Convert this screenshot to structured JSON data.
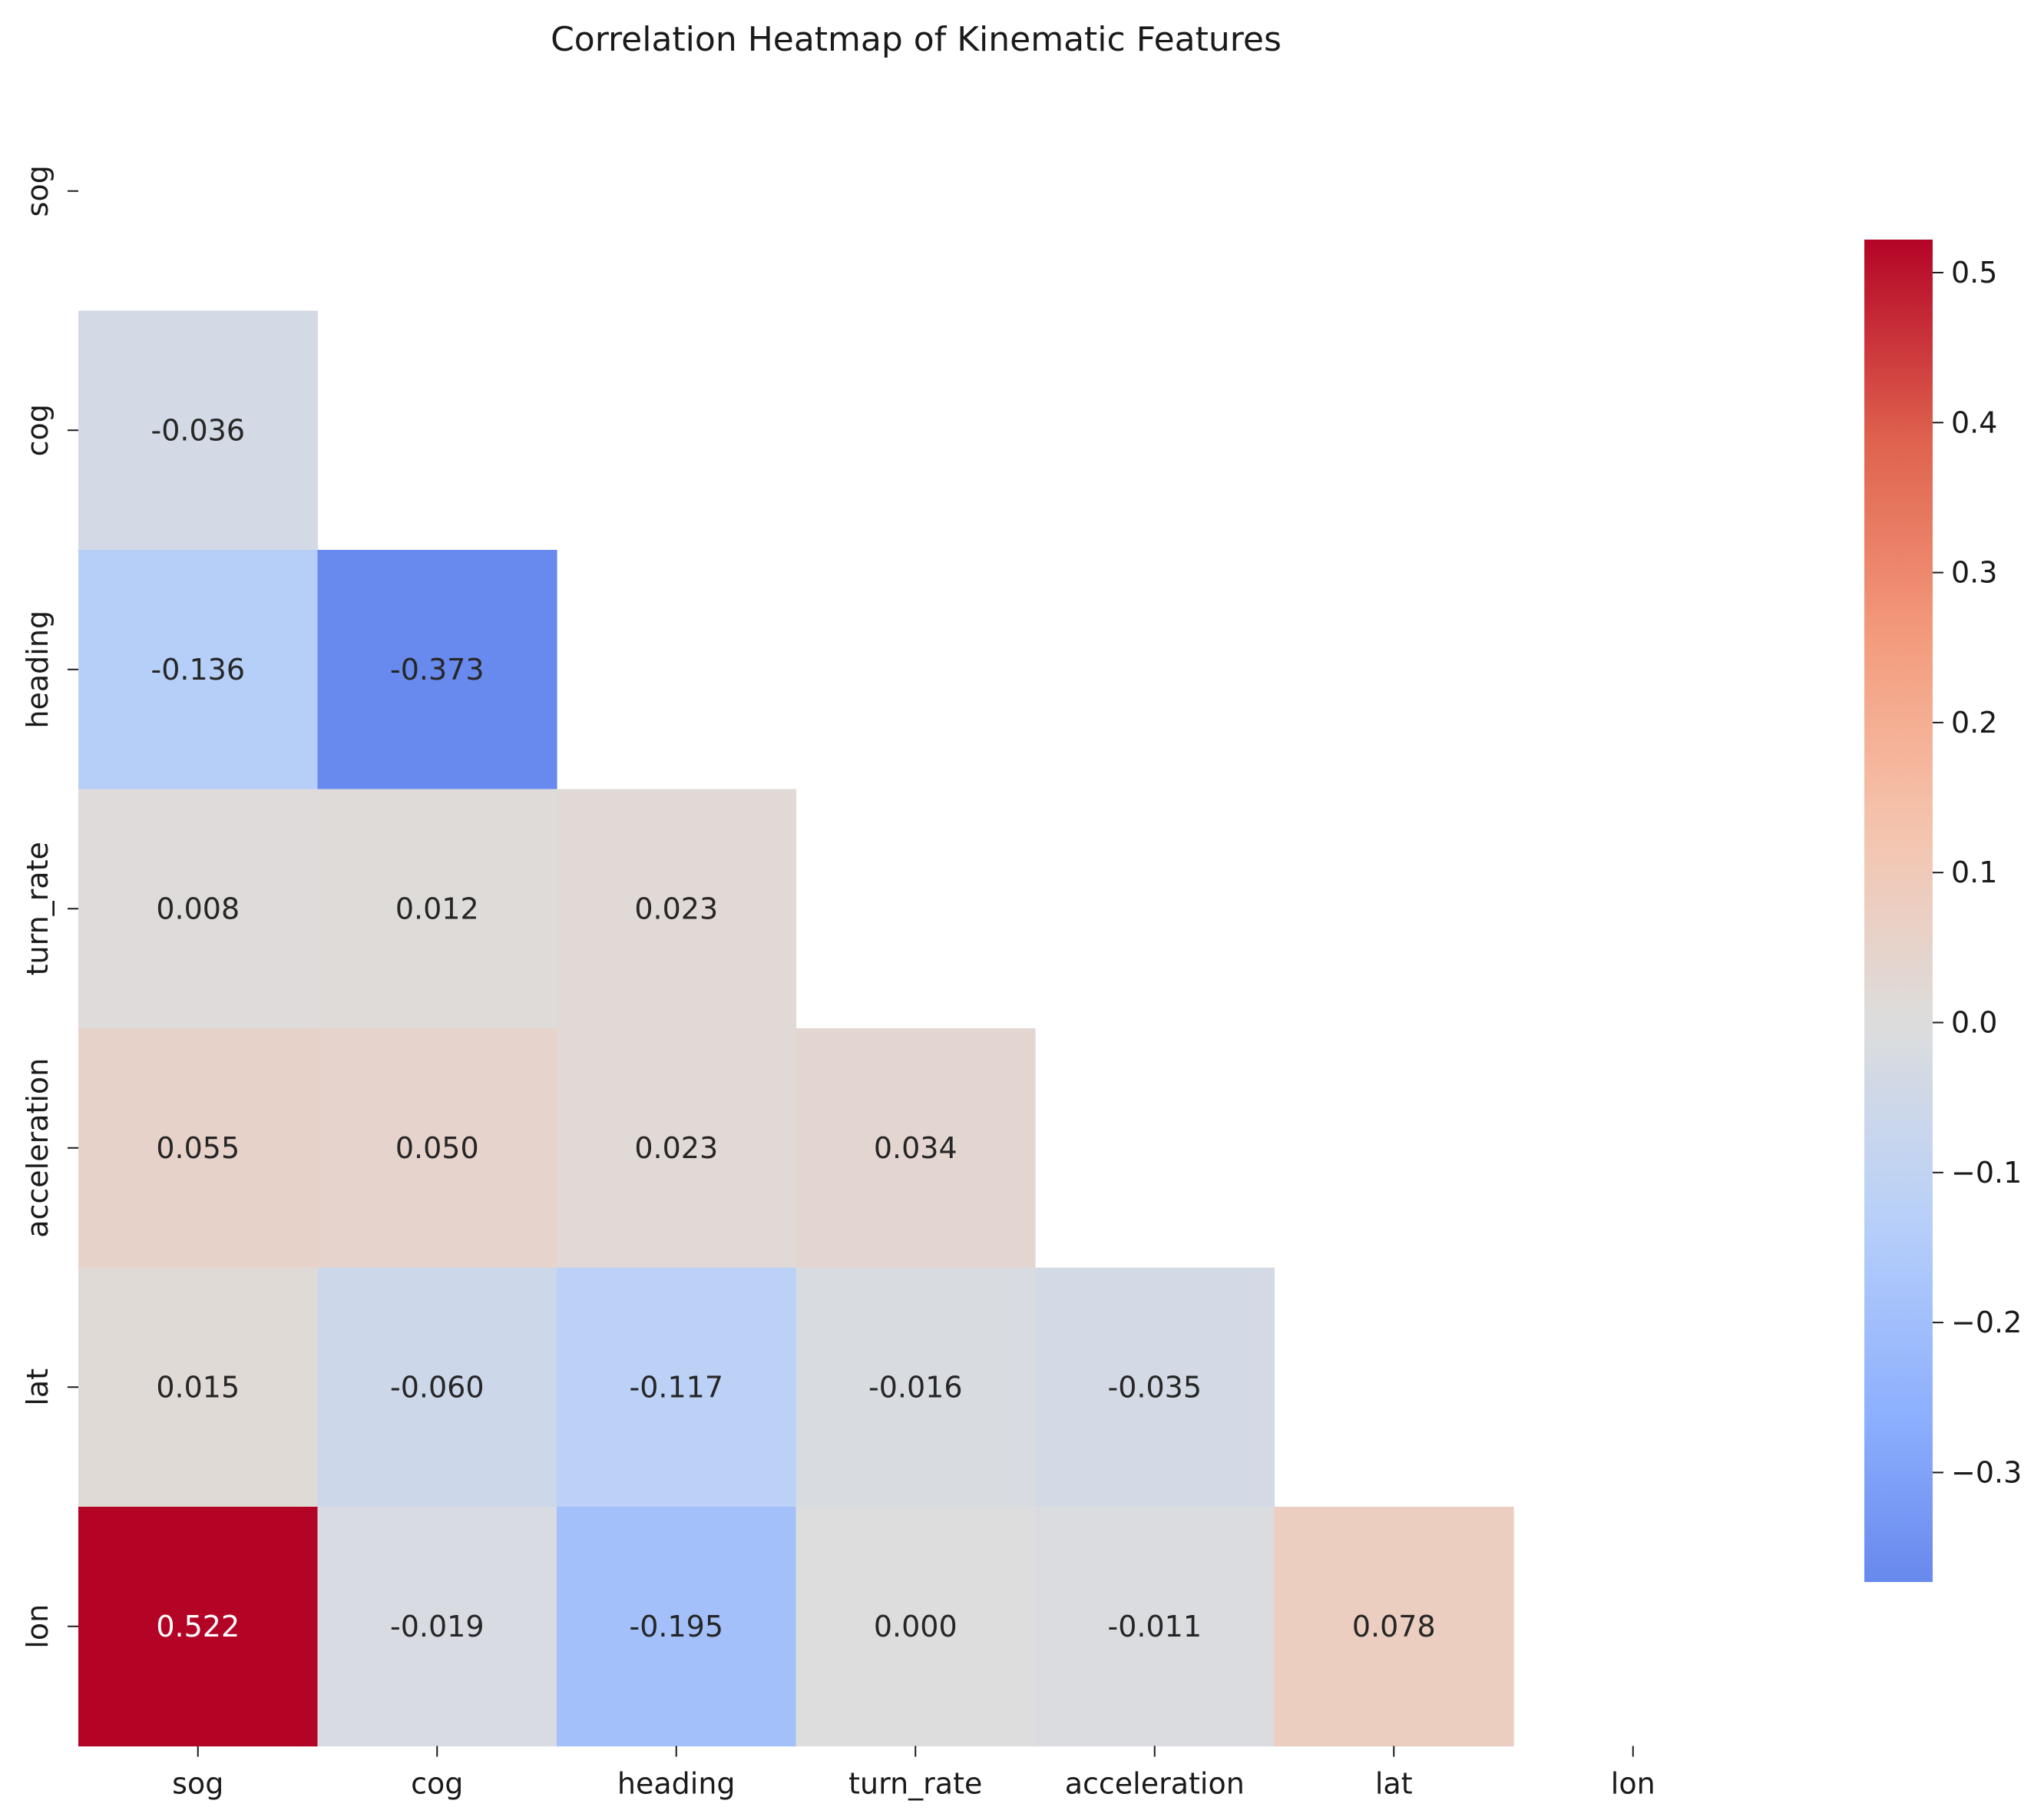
{
  "chart_data": {
    "type": "heatmap",
    "title": "Correlation Heatmap of Kinematic Features",
    "xlabel": "",
    "ylabel": "",
    "labels": [
      "sog",
      "cog",
      "heading",
      "turn_rate",
      "acceleration",
      "lat",
      "lon"
    ],
    "mask": "upper-triangle-including-diagonal",
    "matrix": [
      [
        null,
        null,
        null,
        null,
        null,
        null,
        null
      ],
      [
        -0.036,
        null,
        null,
        null,
        null,
        null,
        null
      ],
      [
        -0.136,
        -0.373,
        null,
        null,
        null,
        null,
        null
      ],
      [
        0.008,
        0.012,
        0.023,
        null,
        null,
        null,
        null
      ],
      [
        0.055,
        0.05,
        0.023,
        0.034,
        null,
        null,
        null
      ],
      [
        0.015,
        -0.06,
        -0.117,
        -0.016,
        -0.035,
        null,
        null
      ],
      [
        0.522,
        -0.019,
        -0.195,
        0.0,
        -0.011,
        0.078,
        null
      ]
    ],
    "annotations": [
      [
        null,
        null,
        null,
        null,
        null,
        null,
        null
      ],
      [
        "-0.036",
        null,
        null,
        null,
        null,
        null,
        null
      ],
      [
        "-0.136",
        "-0.373",
        null,
        null,
        null,
        null,
        null
      ],
      [
        "0.008",
        "0.012",
        "0.023",
        null,
        null,
        null,
        null
      ],
      [
        "0.055",
        "0.050",
        "0.023",
        "0.034",
        null,
        null,
        null
      ],
      [
        "0.015",
        "-0.060",
        "-0.117",
        "-0.016",
        "-0.035",
        null,
        null
      ],
      [
        "0.522",
        "-0.019",
        "-0.195",
        "0.000",
        "-0.011",
        "0.078",
        null
      ]
    ],
    "colormap": "coolwarm",
    "colorbar": {
      "vmin": -0.373,
      "vmax": 0.522,
      "center": 0.0,
      "ticks": [
        -0.3,
        -0.2,
        -0.1,
        0.0,
        0.1,
        0.2,
        0.3,
        0.4,
        0.5
      ],
      "tick_labels": [
        "−0.3",
        "−0.2",
        "−0.1",
        "0.0",
        "0.1",
        "0.2",
        "0.3",
        "0.4",
        "0.5"
      ]
    },
    "grid": false
  }
}
